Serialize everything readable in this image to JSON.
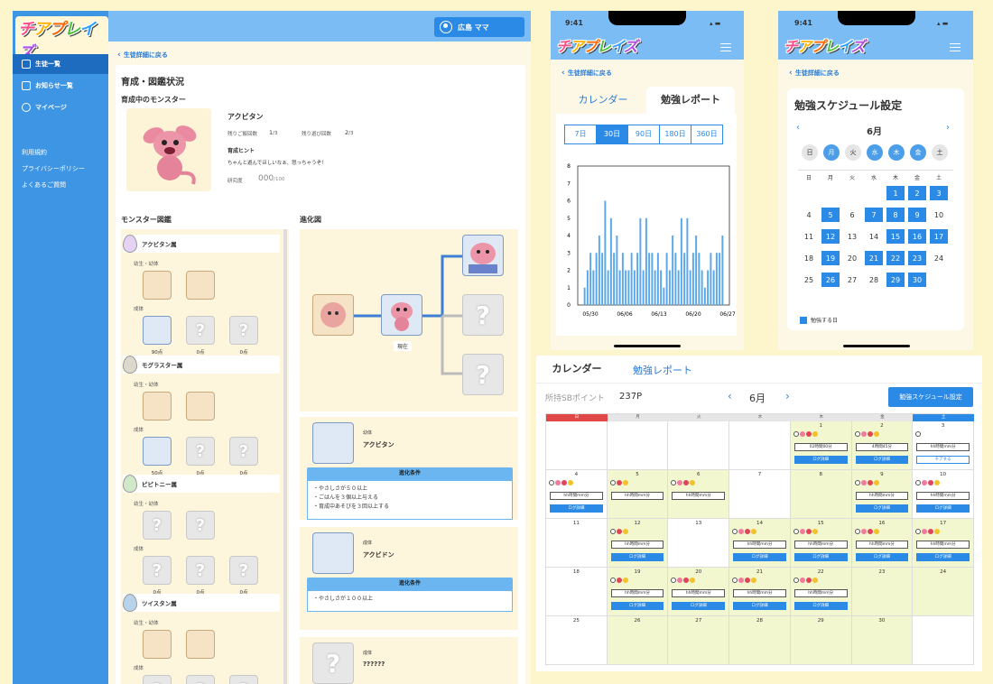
{
  "desktop": {
    "logo": "チアプレイズ",
    "user_name": "広島 ママ",
    "nav": [
      {
        "label": "生徒一覧",
        "active": true,
        "icon": "people-icon"
      },
      {
        "label": "お知らせ一覧",
        "active": false,
        "icon": "mail-icon"
      },
      {
        "label": "マイページ",
        "active": false,
        "icon": "user-icon"
      }
    ],
    "footer_links": [
      "利用規約",
      "プライバシーポリシー",
      "よくあるご質問"
    ],
    "back": "生徒詳細に戻る",
    "title": "育成・図鑑状況",
    "raising_title": "育成中のモンスター",
    "monster_name": "アクビタン",
    "rice_label": "残りご飯回数",
    "rice_value": "1",
    "rice_max": "/3",
    "play_label": "残り遊び回数",
    "play_value": "2",
    "play_max": "/3",
    "hint_label": "育成ヒント",
    "hint_text": "ちゃんと遊んでほしいなぁ、怒っちゃうぞ！",
    "research_label": "研究度",
    "research_value": "000",
    "research_max": "/100",
    "zukan_title": "モンスター図鑑",
    "evo_title": "進化図",
    "baby_label": "幼生・幼体",
    "adult_label": "成体",
    "families": [
      {
        "name": "アクビタン属",
        "points": [
          "90点",
          "0点",
          "0点"
        ]
      },
      {
        "name": "モグラスター属",
        "points": [
          "50点",
          "0点",
          "0点"
        ]
      },
      {
        "name": "ピピトニー属",
        "points": [
          "0点",
          "0点",
          "0点"
        ]
      },
      {
        "name": "ツイスタン属",
        "points": []
      }
    ],
    "current_label": "現在",
    "evo_cards": [
      {
        "stage": "幼体",
        "name": "アクビタン",
        "cond_title": "進化条件",
        "conds": [
          "・やさしさが５０以上",
          "・ごはんを３個以上与える",
          "・育成中あそびを３回以上する"
        ]
      },
      {
        "stage": "成体",
        "name": "アクビドン",
        "cond_title": "進化条件",
        "conds": [
          "・やさしさが１００以上"
        ]
      },
      {
        "stage": "成体",
        "name": "??????",
        "cond_title": "進化条件",
        "conds": []
      }
    ]
  },
  "phone1": {
    "time": "9:41",
    "back": "生徒詳細に戻る",
    "tabs": [
      "カレンダー",
      "勉強レポート"
    ],
    "ranges": [
      "7日",
      "30日",
      "90日",
      "180日",
      "360日"
    ],
    "active_range": "30日"
  },
  "chart_data": {
    "type": "bar",
    "x_labels": [
      "05/30",
      "06/06",
      "06/13",
      "06/20",
      "06/27"
    ],
    "yticks": [
      "0",
      "1",
      "2",
      "3",
      "4",
      "5",
      "6",
      "7",
      "8"
    ],
    "ylim": [
      0,
      8
    ],
    "values": [
      1,
      2,
      3,
      2,
      3,
      4,
      3,
      6,
      2,
      5,
      3,
      4,
      2,
      3,
      2,
      2,
      3,
      2,
      3,
      5,
      2,
      5,
      3,
      3,
      2,
      3,
      2,
      1,
      3,
      2,
      4,
      3,
      2,
      5,
      3,
      5,
      2,
      3,
      4,
      3,
      2,
      1,
      2,
      3,
      2,
      3,
      3,
      4
    ],
    "color": "#5aa7ea"
  },
  "phone2": {
    "time": "9:41",
    "back": "生徒詳細に戻る",
    "title": "勉強スケジュール設定",
    "month": "6月",
    "weekdays": [
      "日",
      "月",
      "火",
      "水",
      "木",
      "金",
      "土"
    ],
    "weekday_on": [
      false,
      true,
      false,
      true,
      true,
      true,
      false
    ],
    "days": [
      [
        "",
        "",
        "",
        "",
        "1",
        "2",
        "3"
      ],
      [
        "4",
        "5",
        "6",
        "7",
        "8",
        "9",
        "10"
      ],
      [
        "11",
        "12",
        "13",
        "14",
        "15",
        "16",
        "17"
      ],
      [
        "18",
        "19",
        "20",
        "21",
        "22",
        "23",
        "24"
      ],
      [
        "25",
        "26",
        "27",
        "28",
        "29",
        "30",
        ""
      ]
    ],
    "on_days": [
      "1",
      "2",
      "3",
      "5",
      "7",
      "8",
      "9",
      "12",
      "15",
      "16",
      "17",
      "19",
      "21",
      "22",
      "23",
      "26",
      "29",
      "30"
    ],
    "legend": "勉強する日"
  },
  "bigcal": {
    "tabs": [
      "カレンダー",
      "勉強レポート"
    ],
    "points_label": "所持SBポイント",
    "points": "237P",
    "month": "6月",
    "schedule_btn": "勉強スケジュール設定",
    "headers": [
      "日",
      "月",
      "火",
      "水",
      "木",
      "金",
      "土"
    ],
    "weeks": [
      [
        {
          "d": ""
        },
        {
          "d": ""
        },
        {
          "d": ""
        },
        {
          "d": ""
        },
        {
          "d": "1",
          "y": true,
          "dots": 3,
          "box": "02時間00分",
          "btn": "ログ詳細"
        },
        {
          "d": "2",
          "y": true,
          "dots": 3,
          "box": "4時間45分",
          "btn": "ログ詳細"
        },
        {
          "d": "3",
          "dots": 0,
          "box": "hh時間mm分",
          "cheer": "チアする"
        }
      ],
      [
        {
          "d": "4",
          "dots": 3,
          "box": "hh時間mm分",
          "btn": "ログ詳細"
        },
        {
          "d": "5",
          "y": true,
          "dots": 2,
          "box": "hh時間mm分"
        },
        {
          "d": "6",
          "y": true,
          "dots": 3,
          "box": "hh時間mm分"
        },
        {
          "d": "7"
        },
        {
          "d": "8",
          "y": true
        },
        {
          "d": "9",
          "y": true,
          "dots": 3,
          "box": "hh時間mm分",
          "btn": "ログ詳細"
        },
        {
          "d": "10",
          "dots": 3,
          "box": "hh時間mm分",
          "btn": "ログ詳細"
        }
      ],
      [
        {
          "d": "11"
        },
        {
          "d": "12",
          "y": true,
          "dots": 2,
          "box": "hh時間mm分",
          "btn": "ログ詳細"
        },
        {
          "d": "13"
        },
        {
          "d": "14",
          "y": true,
          "dots": 3,
          "box": "hh時間mm分",
          "btn": "ログ詳細"
        },
        {
          "d": "15",
          "y": true,
          "dots": 3,
          "box": "hh時間mm分",
          "btn": "ログ詳細"
        },
        {
          "d": "16",
          "y": true,
          "dots": 3,
          "box": "hh時間mm分",
          "btn": "ログ詳細"
        },
        {
          "d": "17",
          "y": true,
          "dots": 3,
          "box": "hh時間mm分",
          "btn": "ログ詳細"
        }
      ],
      [
        {
          "d": "18"
        },
        {
          "d": "19",
          "y": true,
          "dots": 2,
          "box": "hh時間mm分",
          "btn": "ログ詳細"
        },
        {
          "d": "20",
          "y": true,
          "dots": 3,
          "box": "hh時間mm分",
          "btn": "ログ詳細"
        },
        {
          "d": "21",
          "y": true,
          "dots": 3,
          "box": "hh時間mm分",
          "btn": "ログ詳細"
        },
        {
          "d": "22",
          "y": true,
          "dots": 3,
          "box": "hh時間mm分",
          "btn": "ログ詳細"
        },
        {
          "d": "23",
          "y": true
        },
        {
          "d": "24",
          "y": true
        }
      ],
      [
        {
          "d": "25"
        },
        {
          "d": "26",
          "y": true
        },
        {
          "d": "27",
          "y": true
        },
        {
          "d": "28",
          "y": true
        },
        {
          "d": "29",
          "y": true
        },
        {
          "d": "30",
          "y": true
        },
        {
          "d": ""
        }
      ]
    ]
  }
}
